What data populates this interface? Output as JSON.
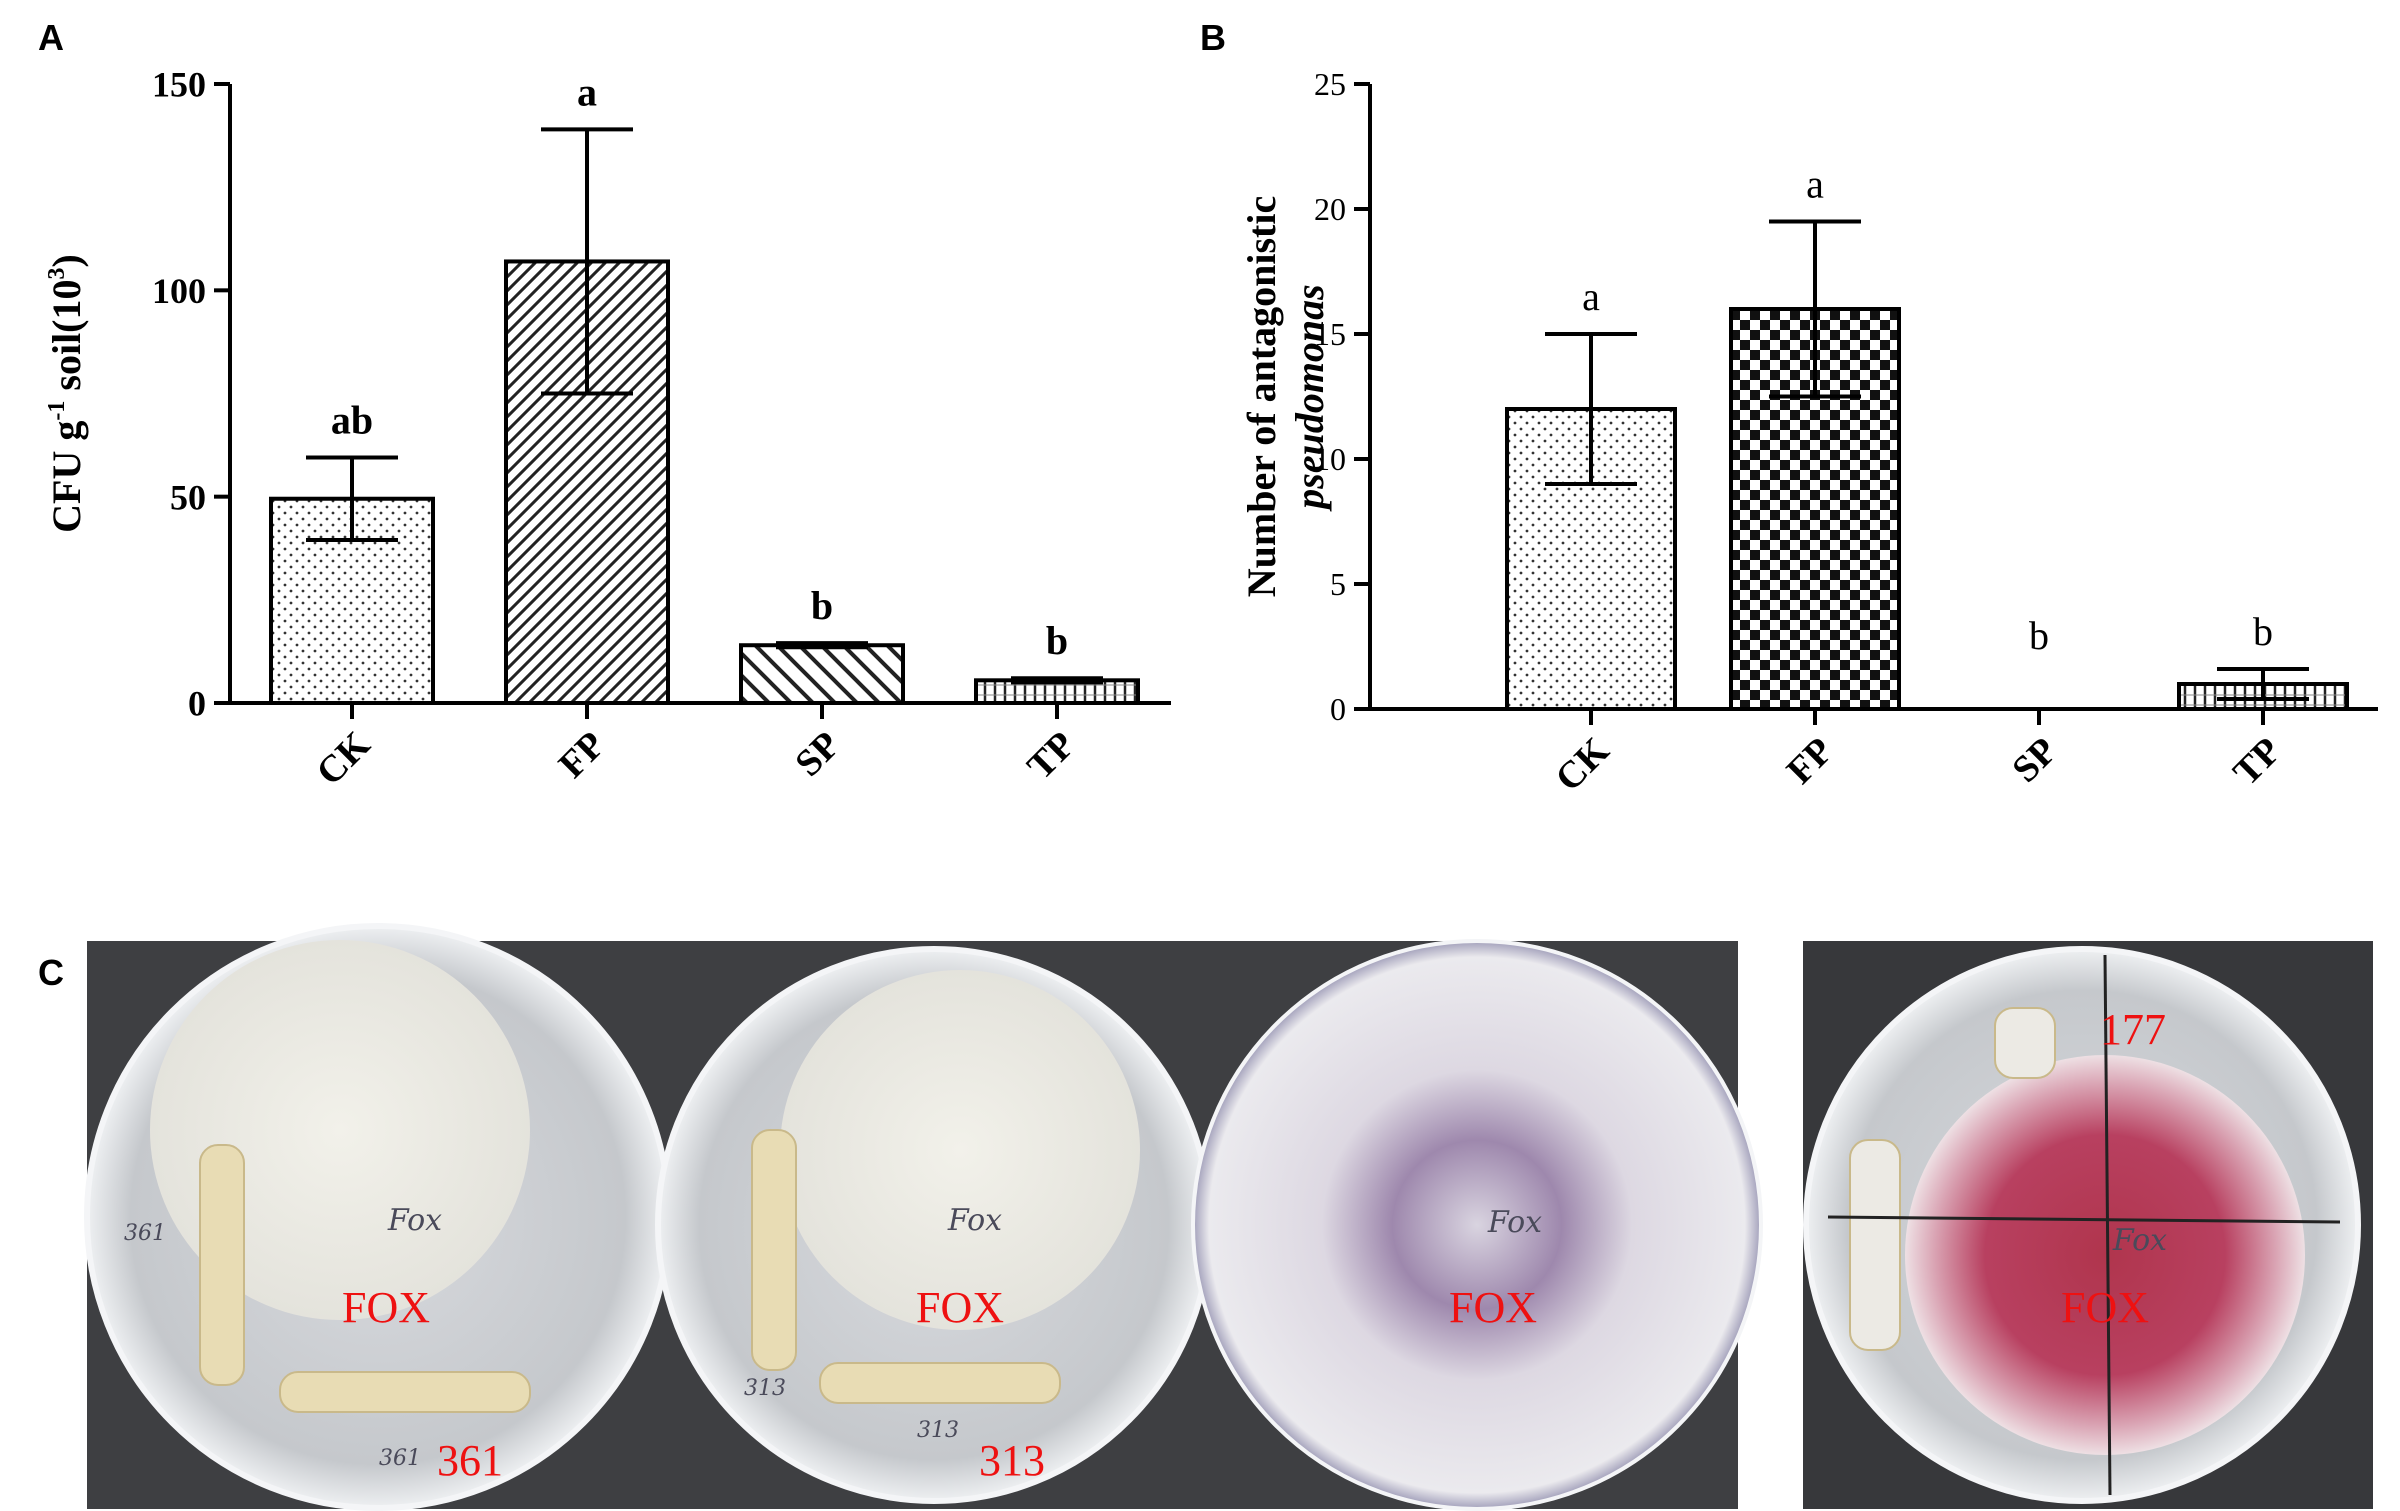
{
  "panel_labels": [
    "A",
    "B",
    "C"
  ],
  "chart_data": [
    {
      "type": "bar",
      "ylabel": [
        "CFU g",
        "-1",
        " soil(10",
        "3",
        ")"
      ],
      "categories": [
        "CK",
        "FP",
        "SP",
        "TP"
      ],
      "values": [
        49.5,
        107,
        14,
        5.5
      ],
      "errors": [
        10,
        32,
        0.5,
        0.5
      ],
      "annotations": [
        "ab",
        "a",
        "b",
        "b"
      ],
      "patterns": [
        "dots",
        "hatch",
        "backhatch",
        "vlines"
      ],
      "ylim": [
        0,
        150
      ],
      "yticks": [
        0,
        50,
        100,
        150
      ]
    },
    {
      "type": "bar",
      "ylabel": [
        "Number of antagonistic",
        "pseudomonas"
      ],
      "categories": [
        "CK",
        "FP",
        "SP",
        "TP"
      ],
      "values": [
        12,
        16,
        0,
        1
      ],
      "errors": [
        3,
        3.5,
        0,
        0.6
      ],
      "annotations": [
        "a",
        "a",
        "b",
        "b"
      ],
      "patterns": [
        "dots",
        "checker",
        "none",
        "vlines"
      ],
      "ylim": [
        0,
        25
      ],
      "yticks": [
        0,
        5,
        10,
        15,
        20,
        25
      ]
    }
  ],
  "panel_c": {
    "plates": [
      {
        "fox": "FOX",
        "strain": "361",
        "handwritten": [
          "Fox",
          "361",
          "361"
        ]
      },
      {
        "fox": "FOX",
        "strain": "313",
        "handwritten": [
          "Fox",
          "313",
          "313"
        ]
      },
      {
        "fox": "FOX",
        "handwritten": [
          "Fox"
        ]
      },
      {
        "fox": "FOX",
        "strain": "177",
        "handwritten": [
          "Fox"
        ]
      }
    ]
  }
}
